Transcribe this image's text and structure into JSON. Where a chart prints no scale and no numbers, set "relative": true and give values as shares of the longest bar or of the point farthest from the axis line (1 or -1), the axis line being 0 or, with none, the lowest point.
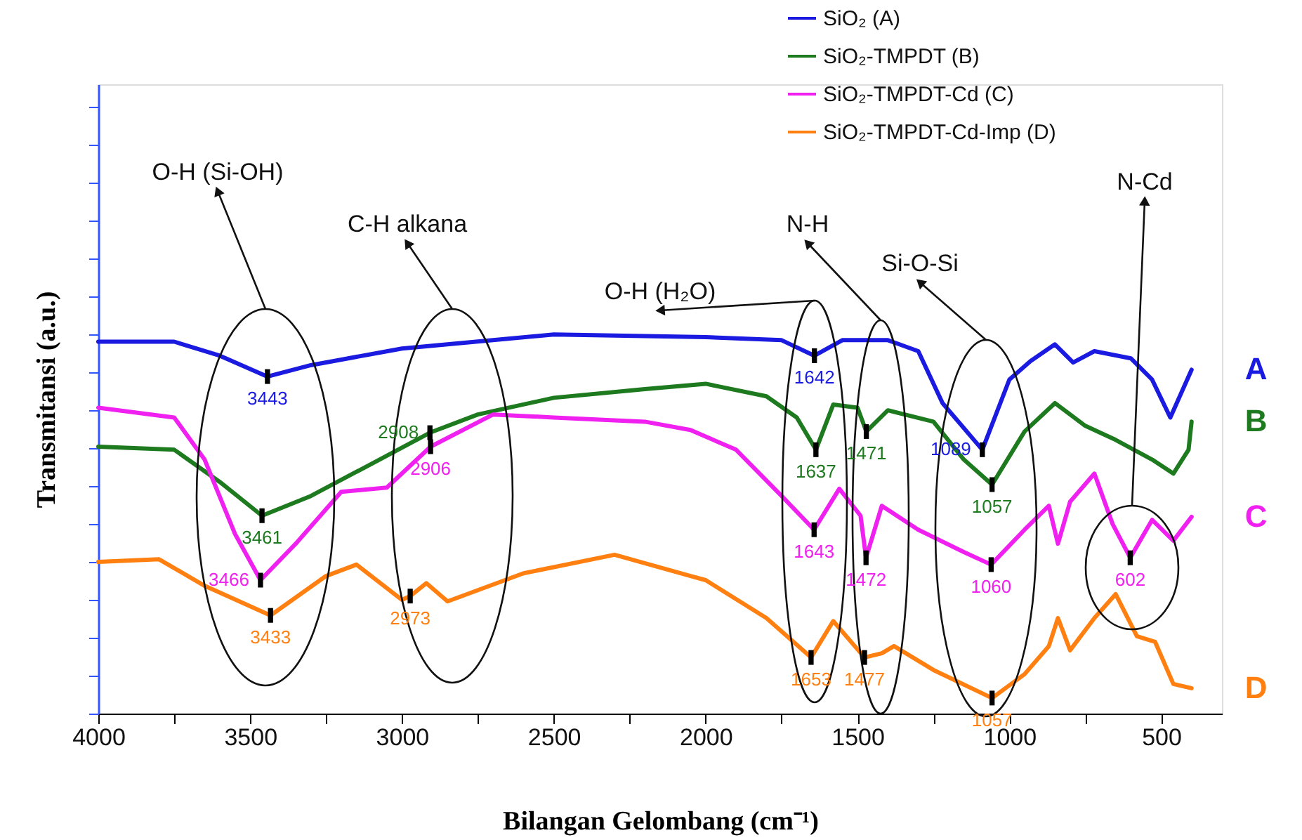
{
  "chart_data": {
    "type": "line",
    "relative": true,
    "xlabel": "Bilangan Gelombang (cm⁻¹)",
    "ylabel": "Transmitansi  (a.u.)",
    "xlim": [
      4000,
      300
    ],
    "xticks": [
      4000,
      {
        "value": 3750,
        "label": null
      },
      3500,
      {
        "value": 3250,
        "label": null
      },
      3000,
      {
        "value": 2750,
        "label": null
      },
      2500,
      {
        "value": 2250,
        "label": null
      },
      2000,
      {
        "value": 1750,
        "label": null
      },
      1500,
      {
        "value": 1250,
        "label": null
      },
      1000,
      {
        "value": 750,
        "label": null
      },
      500
    ],
    "tick_labels": "x",
    "grid": false,
    "legend": "top right",
    "marker": "none",
    "line_style": "solid",
    "series": [
      {
        "name": "SiO₂ (A)",
        "color": "#1a1ae0",
        "x": [
          4000,
          3750,
          3600,
          3443,
          3300,
          3000,
          2500,
          2000,
          1750,
          1642,
          1550,
          1400,
          1300,
          1220,
          1089,
          1000,
          930,
          850,
          790,
          720,
          600,
          530,
          470,
          400
        ],
        "values": [
          0.981,
          0.981,
          0.944,
          0.889,
          0.919,
          0.963,
          1.0,
          0.993,
          0.985,
          0.944,
          0.985,
          0.985,
          0.956,
          0.819,
          0.696,
          0.881,
          0.93,
          0.974,
          0.926,
          0.956,
          0.937,
          0.881,
          0.781,
          0.907
        ]
      },
      {
        "name": "SiO₂-TMPDT (B)",
        "color": "#1e7a1e",
        "x": [
          4000,
          3750,
          3600,
          3461,
          3300,
          3100,
          2908,
          2750,
          2500,
          2200,
          2000,
          1800,
          1700,
          1637,
          1580,
          1500,
          1471,
          1400,
          1250,
          1150,
          1057,
          950,
          850,
          750,
          650,
          530,
          460,
          410,
          400
        ],
        "values": [
          0.704,
          0.696,
          0.611,
          0.522,
          0.574,
          0.659,
          0.741,
          0.789,
          0.833,
          0.856,
          0.87,
          0.837,
          0.781,
          0.696,
          0.815,
          0.807,
          0.744,
          0.8,
          0.77,
          0.67,
          0.604,
          0.744,
          0.819,
          0.759,
          0.722,
          0.67,
          0.633,
          0.696,
          0.77
        ]
      },
      {
        "name": "SiO₂-TMPDT-Cd (C)",
        "color": "#f020f0",
        "x": [
          4000,
          3750,
          3650,
          3550,
          3466,
          3350,
          3200,
          3050,
          2906,
          2700,
          2500,
          2200,
          2050,
          1900,
          1750,
          1643,
          1560,
          1490,
          1472,
          1420,
          1300,
          1150,
          1060,
          950,
          870,
          840,
          800,
          720,
          660,
          602,
          530,
          460,
          400
        ],
        "values": [
          0.807,
          0.781,
          0.67,
          0.474,
          0.352,
          0.448,
          0.585,
          0.596,
          0.704,
          0.789,
          0.781,
          0.77,
          0.748,
          0.696,
          0.574,
          0.485,
          0.593,
          0.522,
          0.411,
          0.548,
          0.485,
          0.426,
          0.393,
          0.485,
          0.548,
          0.448,
          0.559,
          0.633,
          0.5,
          0.411,
          0.511,
          0.456,
          0.519
        ]
      },
      {
        "name": "SiO₂-TMPDT-Cd-Imp (D)",
        "color": "#ff8010",
        "x": [
          4000,
          3800,
          3650,
          3433,
          3250,
          3150,
          3000,
          2973,
          2920,
          2850,
          2600,
          2300,
          2050,
          2000,
          1800,
          1653,
          1580,
          1477,
          1420,
          1380,
          1250,
          1057,
          950,
          870,
          840,
          800,
          720,
          650,
          580,
          520,
          460,
          400
        ],
        "values": [
          0.4,
          0.407,
          0.337,
          0.259,
          0.363,
          0.393,
          0.3,
          0.31,
          0.344,
          0.296,
          0.37,
          0.419,
          0.363,
          0.352,
          0.252,
          0.148,
          0.244,
          0.148,
          0.159,
          0.178,
          0.115,
          0.041,
          0.104,
          0.178,
          0.252,
          0.167,
          0.252,
          0.315,
          0.204,
          0.189,
          0.078,
          0.067
        ]
      }
    ],
    "annotations": [
      "O-H (Si-OH)",
      "C-H alkana",
      "O-H (H₂O)",
      "N-H",
      "Si-O-Si",
      "N-Cd",
      {
        "text": "3443",
        "x": 3443,
        "y": 0.889
      },
      {
        "text": "3461",
        "x": 3461,
        "y": 0.522
      },
      {
        "text": "3466",
        "x": 3466,
        "y": 0.352
      },
      {
        "text": "3433",
        "x": 3433,
        "y": 0.259
      },
      {
        "text": "2908",
        "x": 2908,
        "y": 0.741
      },
      {
        "text": "2906",
        "x": 2906,
        "y": 0.704
      },
      {
        "text": "2973",
        "x": 2973,
        "y": 0.31
      },
      {
        "text": "1642",
        "x": 1642,
        "y": 0.944
      },
      {
        "text": "1637",
        "x": 1637,
        "y": 0.696
      },
      {
        "text": "1643",
        "x": 1643,
        "y": 0.485
      },
      {
        "text": "1653",
        "x": 1653,
        "y": 0.148
      },
      {
        "text": "1471",
        "x": 1471,
        "y": 0.744
      },
      {
        "text": "1472",
        "x": 1472,
        "y": 0.411
      },
      {
        "text": "1477",
        "x": 1477,
        "y": 0.148
      },
      {
        "text": "1089",
        "x": 1089,
        "y": 0.696
      },
      {
        "text": "1057",
        "x": 1057,
        "y": 0.604
      },
      {
        "text": "1060",
        "x": 1060,
        "y": 0.393
      },
      {
        "text": "1057",
        "x": 1057,
        "y": 0.041
      },
      {
        "text": "602",
        "x": 602,
        "y": 0.411
      },
      {
        "text": "A",
        "x": 400,
        "y": 0.907
      },
      {
        "text": "B",
        "x": 400,
        "y": 0.77
      },
      {
        "text": "C",
        "x": 400,
        "y": 0.519
      },
      {
        "text": "D",
        "x": 400,
        "y": 0.067
      }
    ]
  }
}
